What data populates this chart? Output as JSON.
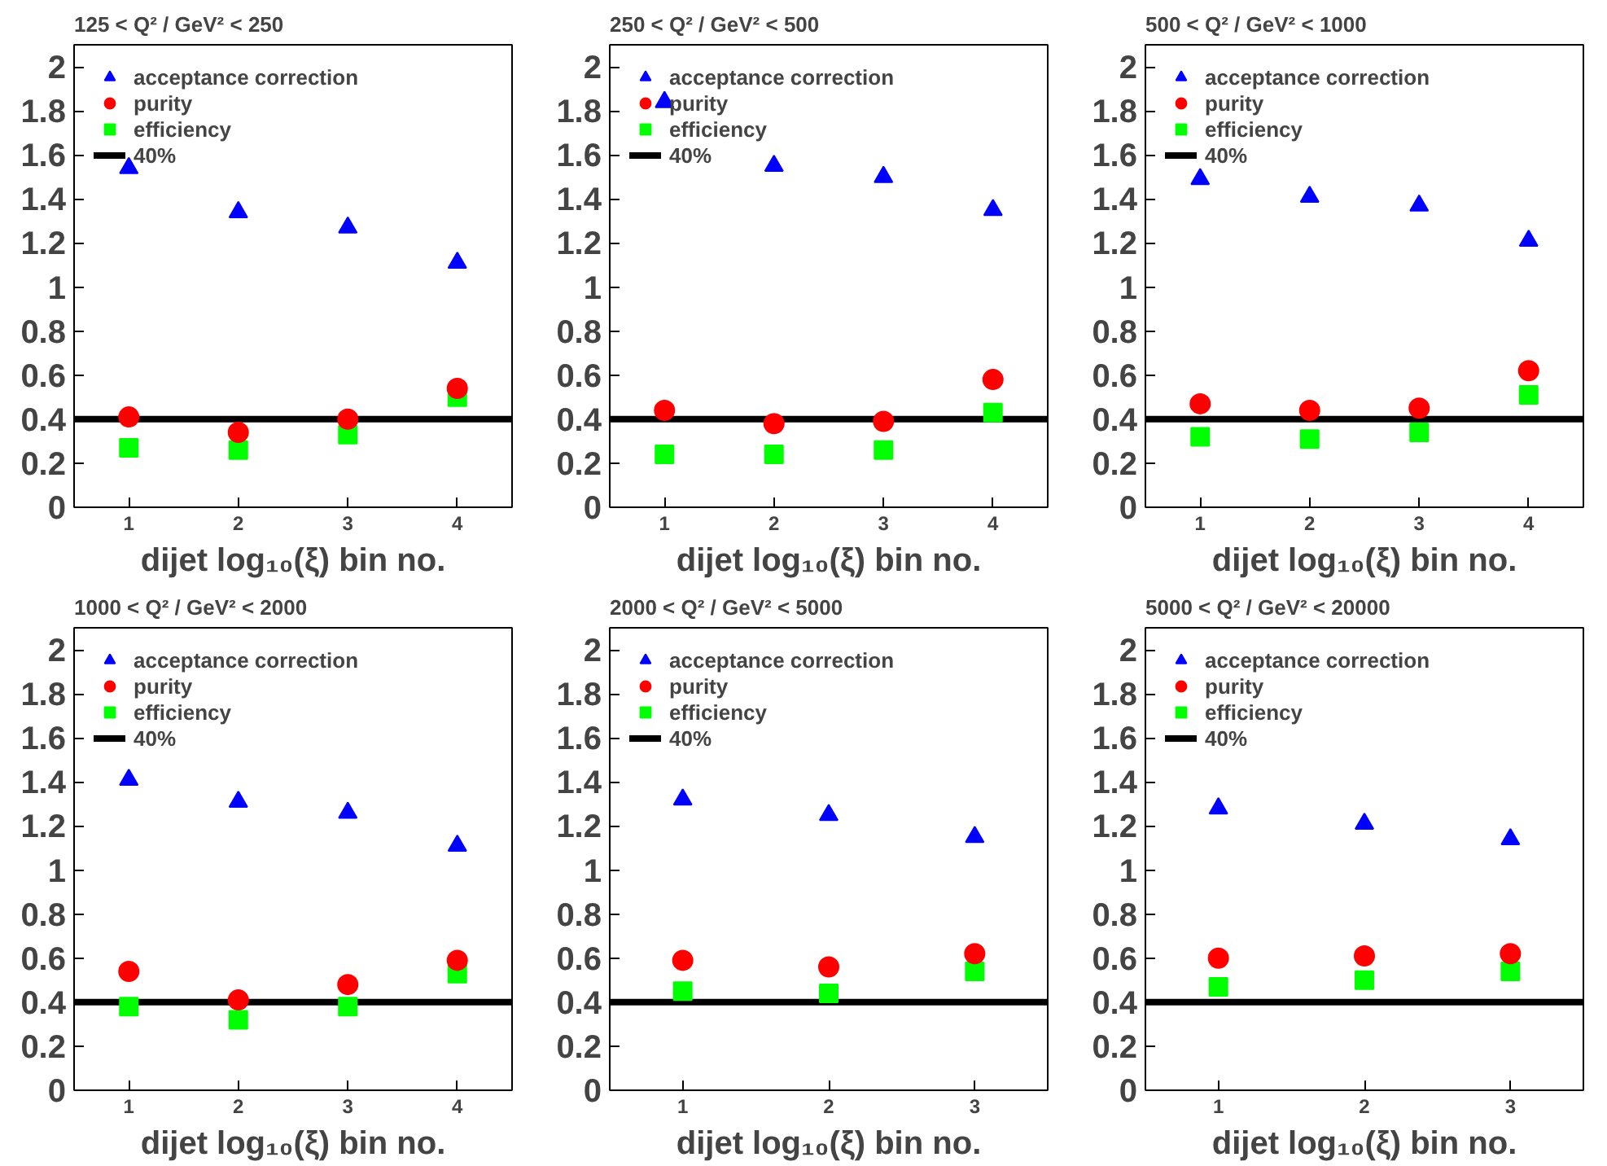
{
  "chart_data": [
    {
      "type": "scatter",
      "title": "125 < Q² / GeV² < 250",
      "xlabel": "dijet log₁₀(ξ) bin no.",
      "x": [
        1,
        2,
        3,
        4
      ],
      "xlim": [
        0.5,
        4.5
      ],
      "xticks": [
        1,
        2,
        3,
        4
      ],
      "ylim": [
        0,
        2.1
      ],
      "yticks": [
        0,
        0.2,
        0.4,
        0.6,
        0.8,
        1,
        1.2,
        1.4,
        1.6,
        1.8,
        2
      ],
      "legend": "top left",
      "grid": false,
      "series": [
        {
          "name": "acceptance correction",
          "color": "#0000ff",
          "marker": "triangle",
          "values": [
            1.54,
            1.34,
            1.27,
            1.11
          ]
        },
        {
          "name": "purity",
          "color": "#ff0000",
          "marker": "circle",
          "values": [
            0.41,
            0.34,
            0.4,
            0.54
          ]
        },
        {
          "name": "efficiency",
          "color": "#00ff00",
          "marker": "square",
          "values": [
            0.27,
            0.26,
            0.33,
            0.5
          ]
        }
      ],
      "ref_lines": [
        {
          "axis": "y",
          "value": 0.4,
          "label": "40%",
          "color": "#000000"
        }
      ]
    },
    {
      "type": "scatter",
      "title": "250 < Q² / GeV² < 500",
      "xlabel": "dijet log₁₀(ξ) bin no.",
      "x": [
        1,
        2,
        3,
        4
      ],
      "xlim": [
        0.5,
        4.5
      ],
      "xticks": [
        1,
        2,
        3,
        4
      ],
      "ylim": [
        0,
        2.1
      ],
      "yticks": [
        0,
        0.2,
        0.4,
        0.6,
        0.8,
        1,
        1.2,
        1.4,
        1.6,
        1.8,
        2
      ],
      "legend": "top left",
      "grid": false,
      "series": [
        {
          "name": "acceptance correction",
          "color": "#0000ff",
          "marker": "triangle",
          "values": [
            1.84,
            1.55,
            1.5,
            1.35
          ]
        },
        {
          "name": "purity",
          "color": "#ff0000",
          "marker": "circle",
          "values": [
            0.44,
            0.38,
            0.39,
            0.58
          ]
        },
        {
          "name": "efficiency",
          "color": "#00ff00",
          "marker": "square",
          "values": [
            0.24,
            0.24,
            0.26,
            0.43
          ]
        }
      ],
      "ref_lines": [
        {
          "axis": "y",
          "value": 0.4,
          "label": "40%",
          "color": "#000000"
        }
      ]
    },
    {
      "type": "scatter",
      "title": "500 < Q² / GeV² < 1000",
      "xlabel": "dijet log₁₀(ξ) bin no.",
      "x": [
        1,
        2,
        3,
        4
      ],
      "xlim": [
        0.5,
        4.5
      ],
      "xticks": [
        1,
        2,
        3,
        4
      ],
      "ylim": [
        0,
        2.1
      ],
      "yticks": [
        0,
        0.2,
        0.4,
        0.6,
        0.8,
        1,
        1.2,
        1.4,
        1.6,
        1.8,
        2
      ],
      "legend": "top left",
      "grid": false,
      "series": [
        {
          "name": "acceptance correction",
          "color": "#0000ff",
          "marker": "triangle",
          "values": [
            1.49,
            1.41,
            1.37,
            1.21
          ]
        },
        {
          "name": "purity",
          "color": "#ff0000",
          "marker": "circle",
          "values": [
            0.47,
            0.44,
            0.45,
            0.62
          ]
        },
        {
          "name": "efficiency",
          "color": "#00ff00",
          "marker": "square",
          "values": [
            0.32,
            0.31,
            0.34,
            0.51
          ]
        }
      ],
      "ref_lines": [
        {
          "axis": "y",
          "value": 0.4,
          "label": "40%",
          "color": "#000000"
        }
      ]
    },
    {
      "type": "scatter",
      "title": "1000 < Q² / GeV² < 2000",
      "xlabel": "dijet log₁₀(ξ) bin no.",
      "x": [
        1,
        2,
        3,
        4
      ],
      "xlim": [
        0.5,
        4.5
      ],
      "xticks": [
        1,
        2,
        3,
        4
      ],
      "ylim": [
        0,
        2.1
      ],
      "yticks": [
        0,
        0.2,
        0.4,
        0.6,
        0.8,
        1,
        1.2,
        1.4,
        1.6,
        1.8,
        2
      ],
      "legend": "top left",
      "grid": false,
      "series": [
        {
          "name": "acceptance correction",
          "color": "#0000ff",
          "marker": "triangle",
          "values": [
            1.41,
            1.31,
            1.26,
            1.11
          ]
        },
        {
          "name": "purity",
          "color": "#ff0000",
          "marker": "circle",
          "values": [
            0.54,
            0.41,
            0.48,
            0.59
          ]
        },
        {
          "name": "efficiency",
          "color": "#00ff00",
          "marker": "square",
          "values": [
            0.38,
            0.32,
            0.38,
            0.53
          ]
        }
      ],
      "ref_lines": [
        {
          "axis": "y",
          "value": 0.4,
          "label": "40%",
          "color": "#000000"
        }
      ]
    },
    {
      "type": "scatter",
      "title": "2000 < Q² / GeV² < 5000",
      "xlabel": "dijet log₁₀(ξ) bin no.",
      "x": [
        1,
        2,
        3
      ],
      "xlim": [
        0.5,
        3.5
      ],
      "xticks": [
        1,
        2,
        3
      ],
      "ylim": [
        0,
        2.1
      ],
      "yticks": [
        0,
        0.2,
        0.4,
        0.6,
        0.8,
        1,
        1.2,
        1.4,
        1.6,
        1.8,
        2
      ],
      "legend": "top left",
      "grid": false,
      "series": [
        {
          "name": "acceptance correction",
          "color": "#0000ff",
          "marker": "triangle",
          "values": [
            1.32,
            1.25,
            1.15
          ]
        },
        {
          "name": "purity",
          "color": "#ff0000",
          "marker": "circle",
          "values": [
            0.59,
            0.56,
            0.62
          ]
        },
        {
          "name": "efficiency",
          "color": "#00ff00",
          "marker": "square",
          "values": [
            0.45,
            0.44,
            0.54
          ]
        }
      ],
      "ref_lines": [
        {
          "axis": "y",
          "value": 0.4,
          "label": "40%",
          "color": "#000000"
        }
      ]
    },
    {
      "type": "scatter",
      "title": "5000 < Q² / GeV² < 20000",
      "xlabel": "dijet log₁₀(ξ) bin no.",
      "x": [
        1,
        2,
        3
      ],
      "xlim": [
        0.5,
        3.5
      ],
      "xticks": [
        1,
        2,
        3
      ],
      "ylim": [
        0,
        2.1
      ],
      "yticks": [
        0,
        0.2,
        0.4,
        0.6,
        0.8,
        1,
        1.2,
        1.4,
        1.6,
        1.8,
        2
      ],
      "legend": "top left",
      "grid": false,
      "series": [
        {
          "name": "acceptance correction",
          "color": "#0000ff",
          "marker": "triangle",
          "values": [
            1.28,
            1.21,
            1.14
          ]
        },
        {
          "name": "purity",
          "color": "#ff0000",
          "marker": "circle",
          "values": [
            0.6,
            0.61,
            0.62
          ]
        },
        {
          "name": "efficiency",
          "color": "#00ff00",
          "marker": "square",
          "values": [
            0.47,
            0.5,
            0.54
          ]
        }
      ],
      "ref_lines": [
        {
          "axis": "y",
          "value": 0.4,
          "label": "40%",
          "color": "#000000"
        }
      ]
    }
  ]
}
